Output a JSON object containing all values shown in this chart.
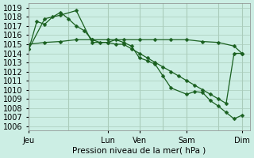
{
  "title": "Pression niveau de la mer( hPa )",
  "bg_color": "#cceee4",
  "grid_color": "#aaccbb",
  "line_color": "#1a6020",
  "marker_color": "#1a6020",
  "ylim": [
    1005.5,
    1019.5
  ],
  "yticks": [
    1006,
    1007,
    1008,
    1009,
    1010,
    1011,
    1012,
    1013,
    1014,
    1015,
    1016,
    1017,
    1018,
    1019
  ],
  "xtick_labels": [
    "Jeu",
    "",
    "Lun",
    "Ven",
    "",
    "Sam",
    "",
    "Dim"
  ],
  "xtick_positions": [
    0,
    5,
    10,
    14,
    17,
    20,
    24,
    27
  ],
  "xtick_show": [
    true,
    false,
    true,
    true,
    false,
    true,
    false,
    true
  ],
  "xmax": 28,
  "series1_x": [
    0,
    2,
    4,
    6,
    8,
    10,
    12,
    14,
    16,
    18,
    20,
    22,
    24,
    26,
    27
  ],
  "series1_y": [
    1015.0,
    1015.2,
    1015.3,
    1015.5,
    1015.5,
    1015.5,
    1015.5,
    1015.5,
    1015.5,
    1015.5,
    1015.5,
    1015.3,
    1015.2,
    1014.8,
    1014.0
  ],
  "series2_x": [
    0,
    1,
    2,
    3,
    4,
    5,
    6,
    7,
    8,
    9,
    10,
    11,
    12,
    13,
    14,
    15,
    16,
    17,
    18,
    19,
    20,
    21,
    22,
    23,
    24,
    25,
    26,
    27
  ],
  "series2_y": [
    1014.5,
    1017.5,
    1017.2,
    1018.0,
    1018.5,
    1017.8,
    1017.0,
    1016.5,
    1015.5,
    1015.2,
    1015.2,
    1015.0,
    1015.0,
    1014.5,
    1014.0,
    1013.5,
    1013.0,
    1012.5,
    1012.0,
    1011.5,
    1011.0,
    1010.5,
    1010.0,
    1009.5,
    1009.0,
    1008.5,
    1014.0,
    1014.0
  ],
  "series3_x": [
    0,
    2,
    4,
    6,
    8,
    10,
    11,
    12,
    13,
    14,
    15,
    16,
    17,
    18,
    20,
    21,
    22,
    23,
    24,
    25,
    26,
    27
  ],
  "series3_y": [
    1014.5,
    1017.8,
    1018.2,
    1018.7,
    1015.2,
    1015.2,
    1015.5,
    1015.2,
    1014.8,
    1013.5,
    1013.2,
    1012.8,
    1011.5,
    1010.2,
    1009.5,
    1009.8,
    1009.7,
    1008.8,
    1008.2,
    1007.5,
    1006.8,
    1007.2
  ]
}
